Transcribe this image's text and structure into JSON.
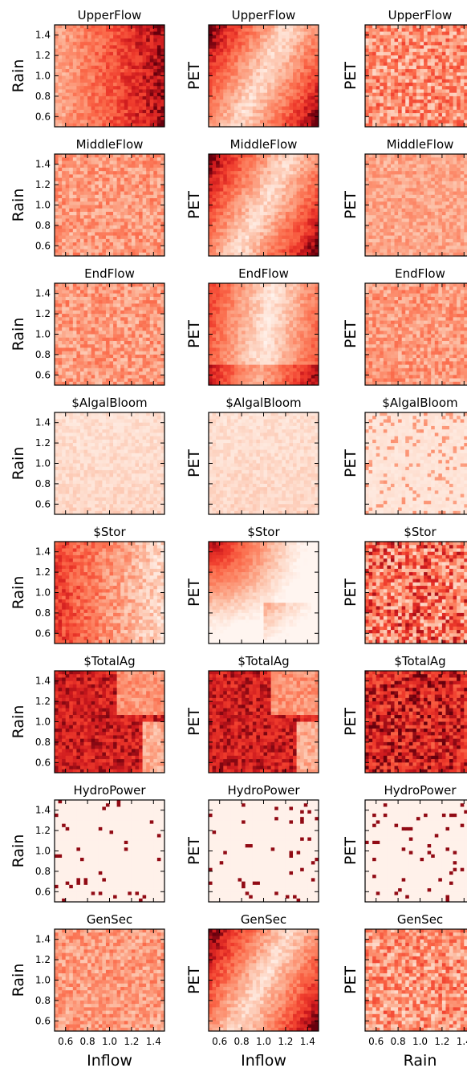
{
  "chart_data": {
    "type": "heatmap",
    "colormap": "Reds",
    "colors": {
      "low": "#fff5f0",
      "mid": "#fb6a4a",
      "high": "#67000d"
    },
    "grid": false,
    "legend": "none",
    "xlim": [
      0.5,
      1.5
    ],
    "ylim": [
      0.5,
      1.5
    ],
    "tick_labels": [
      "0.6",
      "0.8",
      "1.0",
      "1.2",
      "1.4"
    ],
    "row_titles": [
      "UpperFlow",
      "MiddleFlow",
      "EndFlow",
      "$AlgalBloom",
      "$Stor",
      "$TotalAg",
      "HydroPower",
      "GenSec"
    ],
    "column_ylabels": [
      "Rain",
      "PET",
      "PET"
    ],
    "column_xlabels": [
      "Inflow",
      "Inflow",
      "Rain"
    ],
    "panels": [
      [
        "gradient_x",
        "diagonal_band",
        "noise"
      ],
      [
        "flat",
        "diagonal_band",
        "flat_light"
      ],
      [
        "flat",
        "light_band",
        "flat"
      ],
      [
        "light",
        "light",
        "light_speckle"
      ],
      [
        "dark_left",
        "dark_corner",
        "speckle_dark"
      ],
      [
        "very_dark_blocks",
        "very_dark_blocks",
        "very_dark"
      ],
      [
        "sparse",
        "sparse",
        "sparse"
      ],
      [
        "flat",
        "diagonal_band",
        "noise"
      ]
    ]
  }
}
